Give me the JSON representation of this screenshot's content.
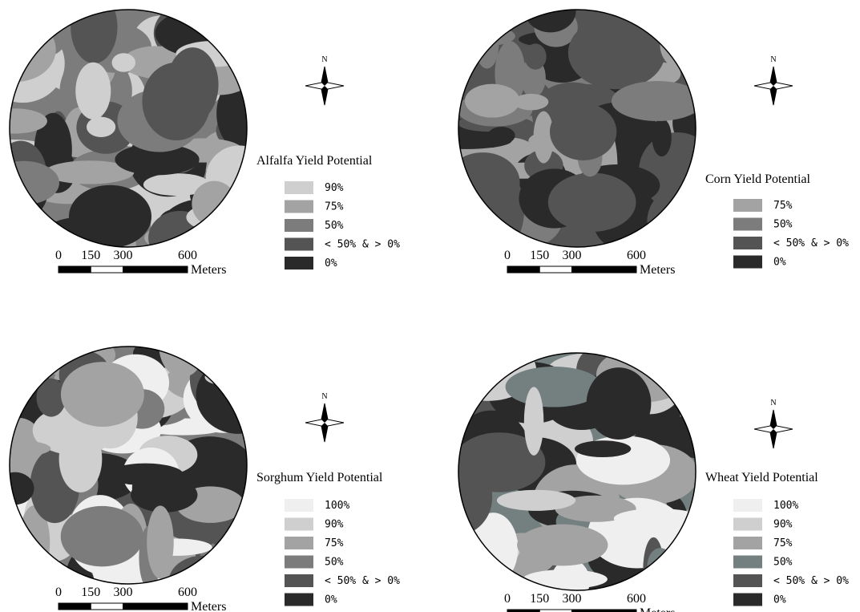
{
  "panels": [
    {
      "title": "Alfalfa Yield Potential",
      "north": "N",
      "legend": [
        {
          "label": "90%",
          "color": "#cfcfcf"
        },
        {
          "label": "75%",
          "color": "#a3a3a3"
        },
        {
          "label": "50%",
          "color": "#7c7c7c"
        },
        {
          "label": "< 50% & > 0%",
          "color": "#545454"
        },
        {
          "label": "0%",
          "color": "#2a2a2a"
        }
      ],
      "scale": {
        "ticks": [
          0,
          150,
          300,
          600
        ],
        "unit": "Meters"
      }
    },
    {
      "title": "Corn Yield Potential",
      "north": "N",
      "legend": [
        {
          "label": "75%",
          "color": "#a3a3a3"
        },
        {
          "label": "50%",
          "color": "#7c7c7c"
        },
        {
          "label": "< 50% & > 0%",
          "color": "#545454"
        },
        {
          "label": "0%",
          "color": "#2a2a2a"
        }
      ],
      "scale": {
        "ticks": [
          0,
          150,
          300,
          600
        ],
        "unit": "Meters"
      }
    },
    {
      "title": "Sorghum Yield Potential",
      "north": "N",
      "legend": [
        {
          "label": "100%",
          "color": "#efefef"
        },
        {
          "label": "90%",
          "color": "#cfcfcf"
        },
        {
          "label": "75%",
          "color": "#a3a3a3"
        },
        {
          "label": "50%",
          "color": "#7c7c7c"
        },
        {
          "label": "< 50% & > 0%",
          "color": "#545454"
        },
        {
          "label": "0%",
          "color": "#2a2a2a"
        }
      ],
      "scale": {
        "ticks": [
          0,
          150,
          300,
          600
        ],
        "unit": "Meters"
      }
    },
    {
      "title": "Wheat Yield Potential",
      "north": "N",
      "legend": [
        {
          "label": "100%",
          "color": "#efefef"
        },
        {
          "label": "90%",
          "color": "#cfcfcf"
        },
        {
          "label": "75%",
          "color": "#a3a3a3"
        },
        {
          "label": "50%",
          "color": "#748080"
        },
        {
          "label": "< 50% & > 0%",
          "color": "#545454"
        },
        {
          "label": "0%",
          "color": "#2a2a2a"
        }
      ],
      "scale": {
        "ticks": [
          0,
          150,
          300,
          600
        ],
        "unit": "Meters"
      }
    }
  ]
}
